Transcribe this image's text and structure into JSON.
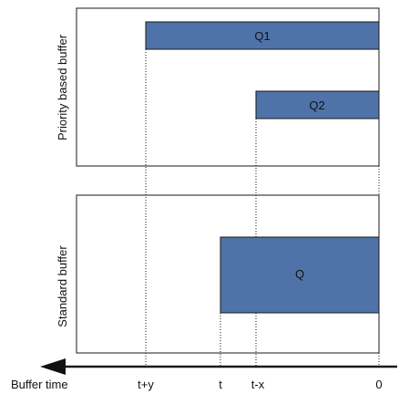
{
  "panels": {
    "priority_label": "Priority based buffer",
    "standard_label": "Standard buffer"
  },
  "bars": {
    "q1": "Q1",
    "q2": "Q2",
    "q": "Q"
  },
  "axis": {
    "label": "Buffer time",
    "ticks": [
      "t+y",
      "t",
      "t-x",
      "0"
    ]
  },
  "colors": {
    "bar_fill": "#4f73a8",
    "outline": "#1a1a1a"
  }
}
